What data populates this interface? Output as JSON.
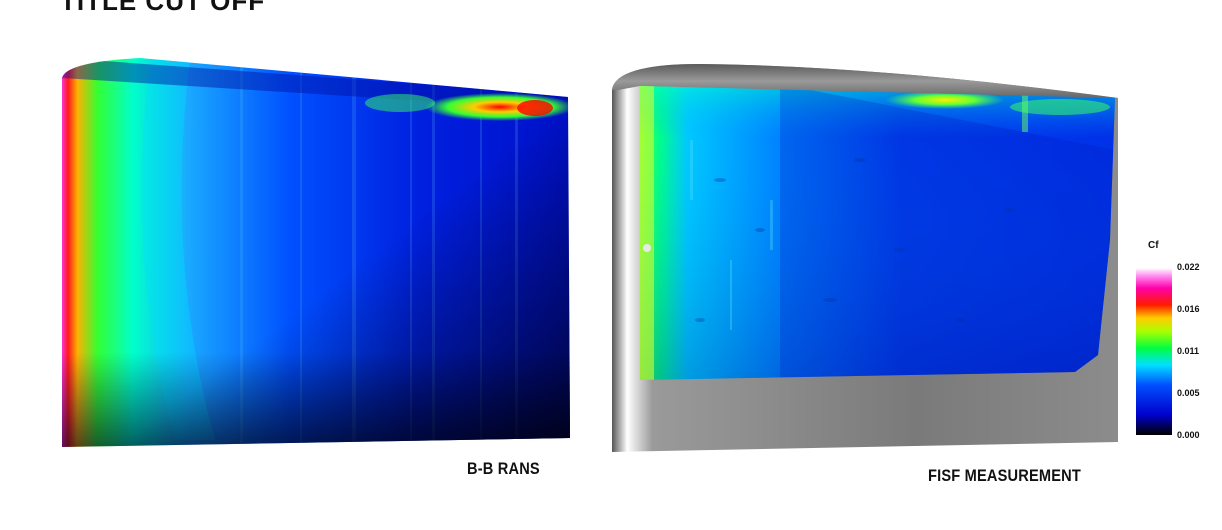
{
  "header_fragment": "TITLE CUT OFF",
  "chart_data": [
    {
      "type": "heatmap",
      "caption": "B-B RANS",
      "colormap": [
        "#000000",
        "#0000ff",
        "#00ffff",
        "#00ff00",
        "#ffff00",
        "#ff0000",
        "#ff00ff",
        "#ffffff"
      ]
    },
    {
      "type": "heatmap",
      "caption": "FISF MEASUREMENT",
      "colormap": [
        "#000000",
        "#0000ff",
        "#00ffff",
        "#00ff00",
        "#ffff00",
        "#ff0000",
        "#ff00ff",
        "#ffffff"
      ]
    }
  ],
  "colorbar": {
    "title": "Cf",
    "ticks": [
      "0.022",
      "0.016",
      "0.011",
      "0.005",
      "0.000"
    ],
    "range": [
      0.0,
      0.022
    ]
  }
}
